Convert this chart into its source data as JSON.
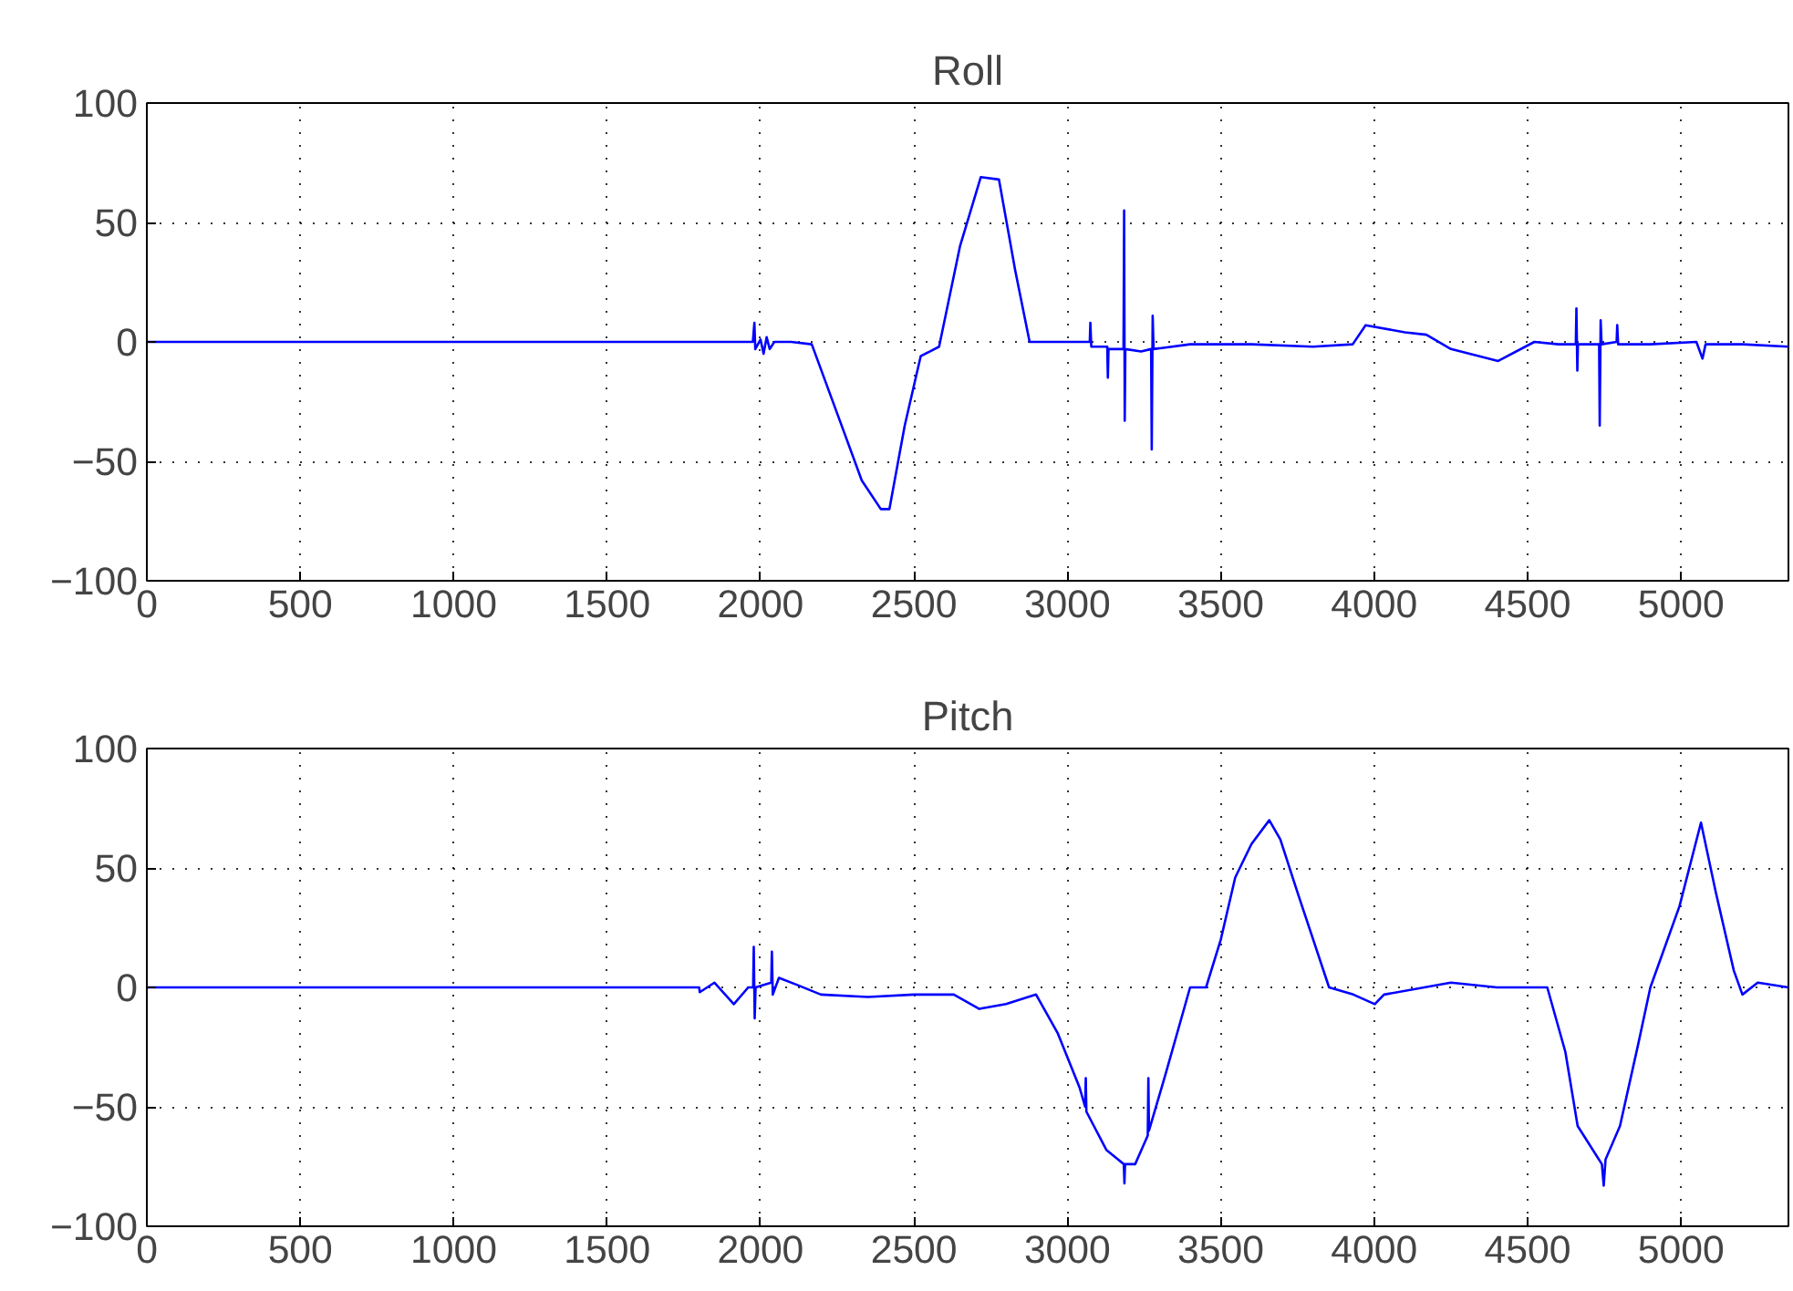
{
  "chart_data": [
    {
      "type": "line",
      "title": "Roll",
      "xlim": [
        0,
        5350
      ],
      "ylim": [
        -100,
        100
      ],
      "xticks": [
        0,
        500,
        1000,
        1500,
        2000,
        2500,
        3000,
        3500,
        4000,
        4500,
        5000
      ],
      "yticks": [
        -100,
        -50,
        0,
        50,
        100
      ],
      "grid": true,
      "x": [
        0,
        1800,
        1975,
        1980,
        1983,
        2000,
        2010,
        2020,
        2030,
        2045,
        2100,
        2167,
        2250,
        2330,
        2392,
        2420,
        2470,
        2522,
        2582,
        2650,
        2718,
        2777,
        2830,
        2877,
        3000,
        3073,
        3075,
        3078,
        3130,
        3132,
        3134,
        3183,
        3185,
        3187,
        3189,
        3240,
        3273,
        3275,
        3278,
        3281,
        3400,
        3600,
        3800,
        3930,
        3972,
        4100,
        4170,
        4250,
        4404,
        4522,
        4600,
        4657,
        4659,
        4662,
        4664,
        4733,
        4735,
        4738,
        4741,
        4790,
        4792,
        4795,
        4900,
        5050,
        5070,
        5080,
        5200,
        5350
      ],
      "series": [
        {
          "color": "#0000ff",
          "values": [
            0,
            0,
            0,
            8,
            -3,
            1,
            -5,
            2,
            -3,
            0,
            0,
            -1,
            -30,
            -58,
            -70,
            -70,
            -35,
            -6,
            -2,
            40,
            69,
            68,
            30,
            0,
            0,
            0,
            8,
            -2,
            -2,
            -15,
            -3,
            -3,
            55,
            -33,
            -3,
            -4,
            -3,
            -45,
            11,
            -3,
            -1,
            -1,
            -2,
            -1,
            7,
            4,
            3,
            -3,
            -8,
            0,
            -1,
            -1,
            14,
            -12,
            -1,
            -1,
            -35,
            9,
            -1,
            0,
            7,
            -1,
            -1,
            0,
            -7,
            -1,
            -1,
            -2
          ]
        }
      ]
    },
    {
      "type": "line",
      "title": "Pitch",
      "xlim": [
        0,
        5350
      ],
      "ylim": [
        -100,
        100
      ],
      "xticks": [
        0,
        500,
        1000,
        1500,
        2000,
        2500,
        3000,
        3500,
        4000,
        4500,
        5000
      ],
      "yticks": [
        -100,
        -50,
        0,
        50,
        100
      ],
      "grid": true,
      "x": [
        0,
        1800,
        1802,
        1850,
        1913,
        1960,
        1976,
        1978,
        1981,
        1984,
        2035,
        2037,
        2040,
        2060,
        2120,
        2197,
        2350,
        2500,
        2630,
        2713,
        2800,
        2898,
        2968,
        3040,
        3058,
        3060,
        3062,
        3127,
        3184,
        3186,
        3188,
        3221,
        3262,
        3264,
        3266,
        3323,
        3400,
        3452,
        3500,
        3547,
        3600,
        3658,
        3694,
        3752,
        3853,
        3932,
        4002,
        4032,
        4250,
        4400,
        4564,
        4623,
        4663,
        4742,
        4748,
        4754,
        4801,
        4860,
        4900,
        4995,
        5065,
        5113,
        5172,
        5200,
        5250,
        5350
      ],
      "series": [
        {
          "color": "#0000ff",
          "values": [
            0,
            0,
            -2,
            2,
            -7,
            0,
            0,
            17,
            -13,
            0,
            2,
            15,
            -3,
            4,
            1,
            -3,
            -4,
            -3,
            -3,
            -9,
            -7,
            -3,
            -19,
            -42,
            -50,
            -38,
            -52,
            -68,
            -74,
            -82,
            -74,
            -74,
            -62,
            -38,
            -60,
            -35,
            0,
            0,
            20,
            46,
            60,
            70,
            62,
            39,
            0,
            -3,
            -7,
            -3,
            2,
            0,
            0,
            -27,
            -58,
            -74,
            -83,
            -72,
            -58,
            -24,
            0,
            34,
            69,
            40,
            7,
            -3,
            2,
            0
          ]
        }
      ]
    }
  ]
}
